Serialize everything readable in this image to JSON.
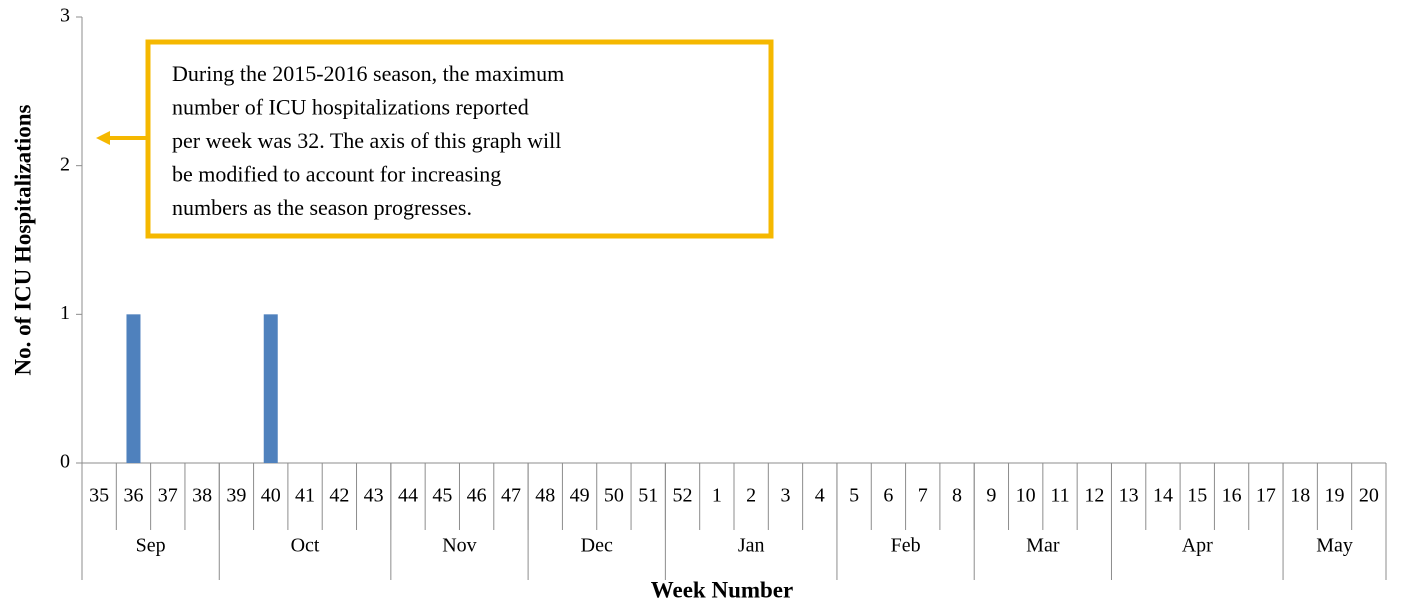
{
  "chart_data": {
    "type": "bar",
    "y_label": "No. of ICU Hospitalizations",
    "x_label": "Week Number",
    "categories": [
      "35",
      "36",
      "37",
      "38",
      "39",
      "40",
      "41",
      "42",
      "43",
      "44",
      "45",
      "46",
      "47",
      "48",
      "49",
      "50",
      "51",
      "52",
      "1",
      "2",
      "3",
      "4",
      "5",
      "6",
      "7",
      "8",
      "9",
      "10",
      "11",
      "12",
      "13",
      "14",
      "15",
      "16",
      "17",
      "18",
      "19",
      "20"
    ],
    "values": [
      0,
      1,
      0,
      0,
      0,
      1,
      0,
      0,
      0,
      0,
      0,
      0,
      0,
      0,
      0,
      0,
      0,
      0,
      0,
      0,
      0,
      0,
      0,
      0,
      0,
      0,
      0,
      0,
      0,
      0,
      0,
      0,
      0,
      0,
      0,
      0,
      0,
      0
    ],
    "groups": [
      {
        "label": "Sep",
        "span": 4
      },
      {
        "label": "Oct",
        "span": 5
      },
      {
        "label": "Nov",
        "span": 4
      },
      {
        "label": "Dec",
        "span": 4
      },
      {
        "label": "Jan",
        "span": 5
      },
      {
        "label": "Feb",
        "span": 4
      },
      {
        "label": "Mar",
        "span": 4
      },
      {
        "label": "Apr",
        "span": 5
      },
      {
        "label": "May",
        "span": 3
      }
    ],
    "color": "#4f81bd",
    "ylim": [
      0,
      3
    ],
    "yticks": [
      0,
      1,
      2,
      3
    ],
    "grid": false,
    "annotation": [
      "During the 2015-2016 season, the maximum",
      "number of ICU hospitalizations reported",
      "per week was 32. The axis of this graph will",
      "be modified to account for increasing",
      "numbers as the season progresses."
    ]
  }
}
